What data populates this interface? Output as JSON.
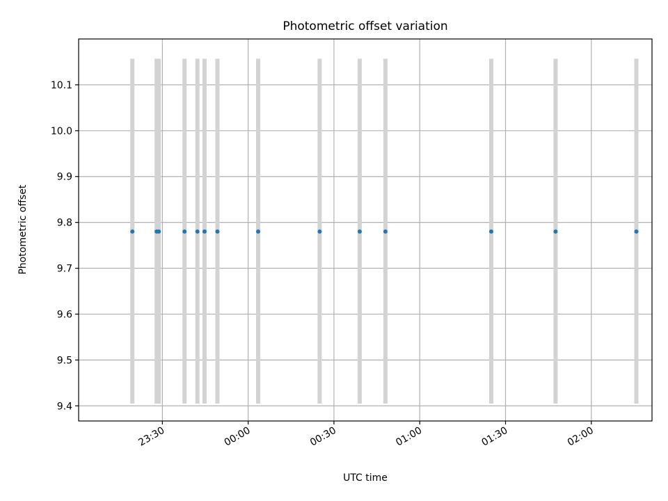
{
  "chart_data": {
    "type": "scatter",
    "title": "Photometric offset variation",
    "xlabel": "UTC time",
    "ylabel": "Photometric offset",
    "grid": true,
    "x_axis": {
      "kind": "time",
      "range": [
        "23:00:43",
        "02:21:13"
      ],
      "ticks": [
        "23:30",
        "00:00",
        "00:30",
        "01:00",
        "01:30",
        "02:00"
      ]
    },
    "y_axis": {
      "range": [
        9.367,
        10.2
      ],
      "ticks": [
        9.4,
        9.5,
        9.6,
        9.7,
        9.8,
        9.9,
        10.0,
        10.1
      ]
    },
    "marker_color": "#1f77b4",
    "band_color": "#d3d3d3",
    "band_range": [
      9.405,
      10.157
    ],
    "points": [
      {
        "t": "23:19:30",
        "y": 9.78
      },
      {
        "t": "23:28:00",
        "y": 9.78
      },
      {
        "t": "23:28:45",
        "y": 9.78
      },
      {
        "t": "23:37:45",
        "y": 9.78
      },
      {
        "t": "23:42:15",
        "y": 9.78
      },
      {
        "t": "23:44:45",
        "y": 9.78
      },
      {
        "t": "23:49:15",
        "y": 9.78
      },
      {
        "t": "00:03:30",
        "y": 9.78
      },
      {
        "t": "00:25:00",
        "y": 9.78
      },
      {
        "t": "00:39:00",
        "y": 9.78
      },
      {
        "t": "00:48:00",
        "y": 9.78
      },
      {
        "t": "01:25:00",
        "y": 9.78
      },
      {
        "t": "01:47:30",
        "y": 9.78
      },
      {
        "t": "02:15:45",
        "y": 9.78
      }
    ]
  }
}
